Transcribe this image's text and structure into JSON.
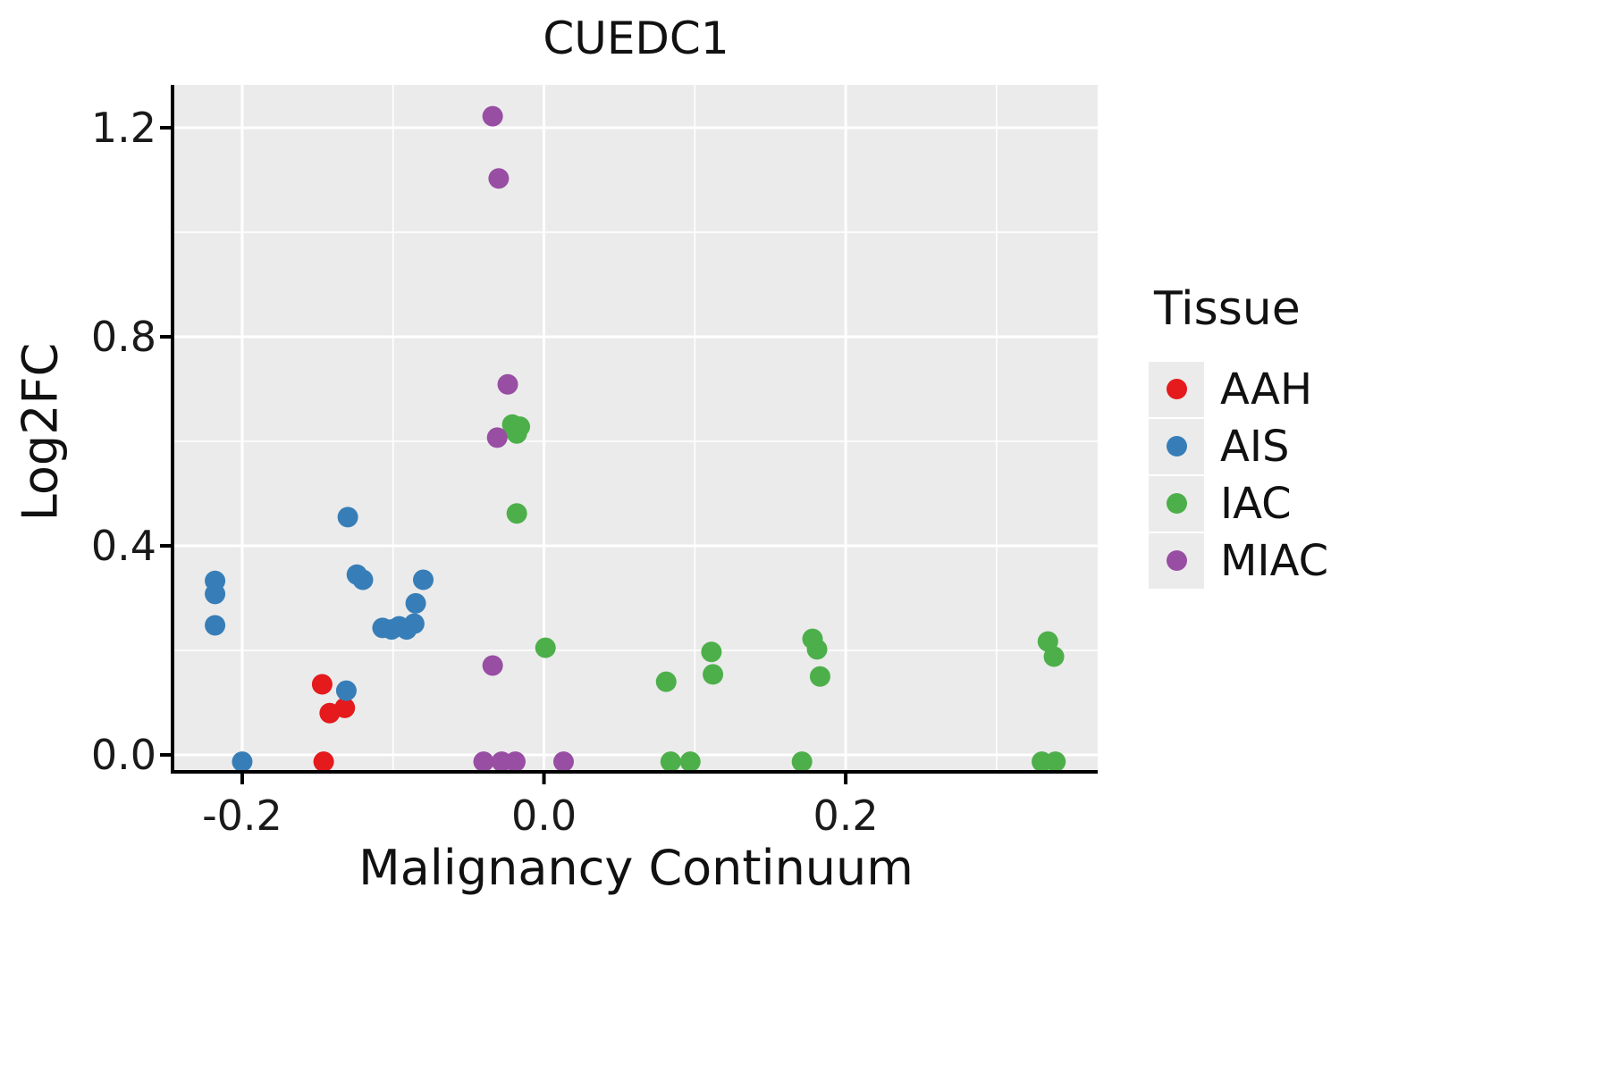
{
  "chart_data": {
    "type": "scatter",
    "title": "CUEDC1",
    "xlabel": "Malignancy Continuum",
    "ylabel": "Log2FC",
    "xlim": [
      -0.245,
      0.367
    ],
    "ylim": [
      -0.029,
      1.282
    ],
    "x_ticks": [
      -0.2,
      0.0,
      0.2
    ],
    "x_tick_labels": [
      "-0.2",
      "0.0",
      "0.2"
    ],
    "y_ticks": [
      0.0,
      0.4,
      0.8,
      1.2
    ],
    "y_tick_labels": [
      "0.0",
      "0.4",
      "0.8",
      "1.2"
    ],
    "x_minor_ticks": [
      -0.1,
      0.1,
      0.3
    ],
    "y_minor_ticks": [
      0.2,
      0.6,
      1.0
    ],
    "grid": true,
    "panel_color": "#EBEBEB",
    "grid_color": "#FFFFFF",
    "legend_title": "Tissue",
    "legend_position": "right",
    "series": [
      {
        "name": "AAH",
        "color": "#E41A1C",
        "points": [
          [
            -0.147,
            0.135
          ],
          [
            -0.142,
            0.08
          ],
          [
            -0.132,
            0.09
          ],
          [
            -0.146,
            -0.013
          ]
        ]
      },
      {
        "name": "AIS",
        "color": "#377EB8",
        "points": [
          [
            -0.218,
            0.333
          ],
          [
            -0.218,
            0.308
          ],
          [
            -0.218,
            0.248
          ],
          [
            -0.2,
            -0.013
          ],
          [
            -0.13,
            0.455
          ],
          [
            -0.131,
            0.123
          ],
          [
            -0.124,
            0.345
          ],
          [
            -0.12,
            0.335
          ],
          [
            -0.107,
            0.243
          ],
          [
            -0.101,
            0.24
          ],
          [
            -0.096,
            0.246
          ],
          [
            -0.091,
            0.24
          ],
          [
            -0.086,
            0.251
          ],
          [
            -0.085,
            0.29
          ],
          [
            -0.08,
            0.335
          ]
        ]
      },
      {
        "name": "IAC",
        "color": "#4DAF4A",
        "points": [
          [
            -0.021,
            0.632
          ],
          [
            -0.018,
            0.615
          ],
          [
            -0.016,
            0.628
          ],
          [
            -0.018,
            0.462
          ],
          [
            0.001,
            0.205
          ],
          [
            0.081,
            0.14
          ],
          [
            0.084,
            -0.013
          ],
          [
            0.097,
            -0.013
          ],
          [
            0.111,
            0.197
          ],
          [
            0.112,
            0.154
          ],
          [
            0.178,
            0.222
          ],
          [
            0.181,
            0.202
          ],
          [
            0.183,
            0.15
          ],
          [
            0.171,
            -0.013
          ],
          [
            0.334,
            0.217
          ],
          [
            0.338,
            0.188
          ],
          [
            0.33,
            -0.013
          ],
          [
            0.339,
            -0.013
          ]
        ]
      },
      {
        "name": "MIAC",
        "color": "#984EA3",
        "points": [
          [
            -0.034,
            1.222
          ],
          [
            -0.03,
            1.103
          ],
          [
            -0.024,
            0.709
          ],
          [
            -0.031,
            0.607
          ],
          [
            -0.034,
            0.171
          ],
          [
            -0.04,
            -0.013
          ],
          [
            -0.028,
            -0.013
          ],
          [
            -0.019,
            -0.013
          ],
          [
            0.013,
            -0.013
          ]
        ]
      }
    ]
  }
}
